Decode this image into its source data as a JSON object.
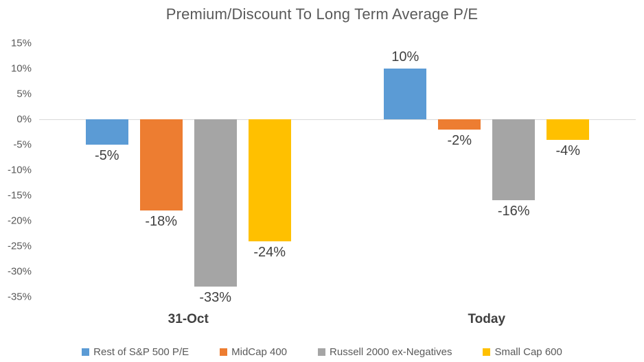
{
  "chart_data": {
    "type": "bar",
    "title": "Premium/Discount To Long Term Average P/E",
    "categories": [
      "31-Oct",
      "Today"
    ],
    "series": [
      {
        "name": "Rest of S&P 500 P/E",
        "color": "#5B9BD5",
        "values": [
          -5,
          10
        ],
        "labels": [
          "-5%",
          "10%"
        ]
      },
      {
        "name": "MidCap 400",
        "color": "#ED7D31",
        "values": [
          -18,
          -2
        ],
        "labels": [
          "-18%",
          "-2%"
        ]
      },
      {
        "name": "Russell 2000 ex-Negatives",
        "color": "#A5A5A5",
        "values": [
          -33,
          -16
        ],
        "labels": [
          "-33%",
          "-16%"
        ]
      },
      {
        "name": "Small Cap 600",
        "color": "#FFC000",
        "values": [
          -24,
          -4
        ],
        "labels": [
          "-24%",
          "-4%"
        ]
      }
    ],
    "y_axis": {
      "min": -35,
      "max": 15,
      "step": 5,
      "tick_labels": [
        "15%",
        "10%",
        "5%",
        "0%",
        "-5%",
        "-10%",
        "-15%",
        "-20%",
        "-25%",
        "-30%",
        "-35%"
      ]
    },
    "legend": {
      "position": "bottom",
      "entries": [
        "Rest of S&P 500 P/E",
        "MidCap 400",
        "Russell 2000 ex-Negatives",
        "Small Cap 600"
      ]
    },
    "grid": "zero-line-only",
    "style": {
      "zero_line_color": "#D9D9D9",
      "axis_text_color": "#595959",
      "data_label_color": "#404040",
      "title_color": "#595959"
    }
  }
}
